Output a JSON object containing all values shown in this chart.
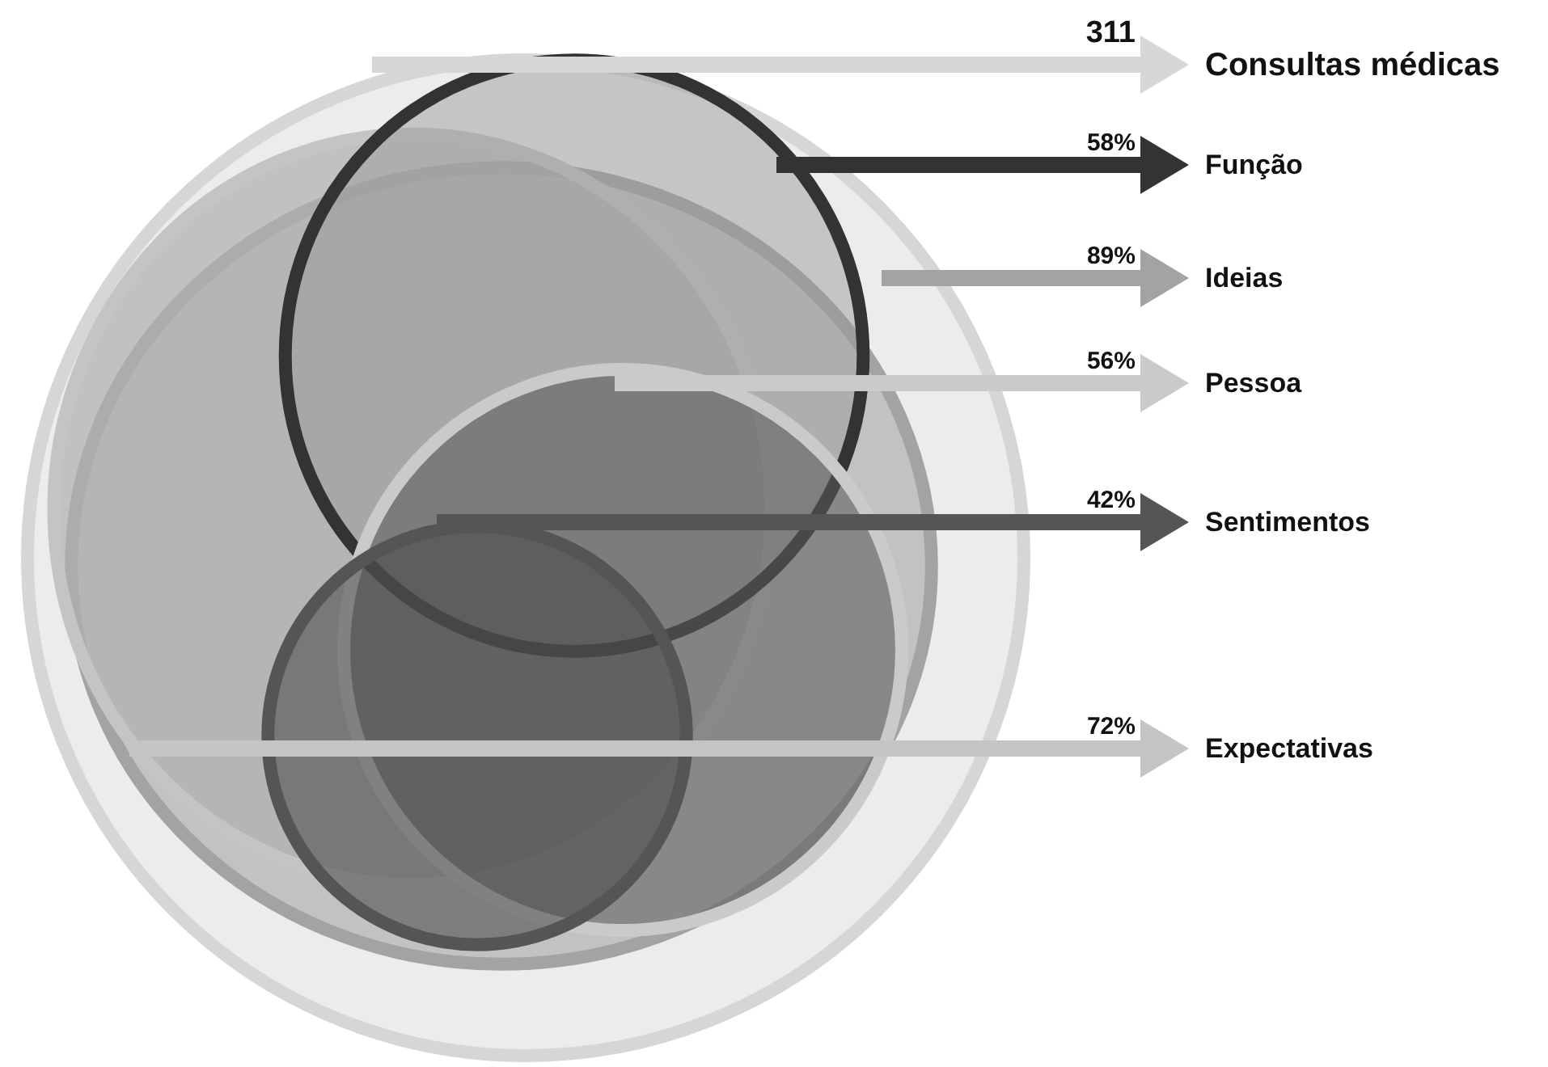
{
  "chart_data": {
    "type": "other",
    "categories": [
      "Consultas médicas",
      "Função",
      "Ideias",
      "Pessoa",
      "Sentimentos",
      "Expectativas"
    ],
    "values": [
      311,
      58,
      89,
      56,
      42,
      72
    ],
    "value_labels": [
      "311",
      "58%",
      "89%",
      "56%",
      "42%",
      "72%"
    ],
    "colors": [
      "#d6d6d6",
      "#333333",
      "#a3a3a3",
      "#cacaca",
      "#555555",
      "#c4c4c4"
    ]
  }
}
